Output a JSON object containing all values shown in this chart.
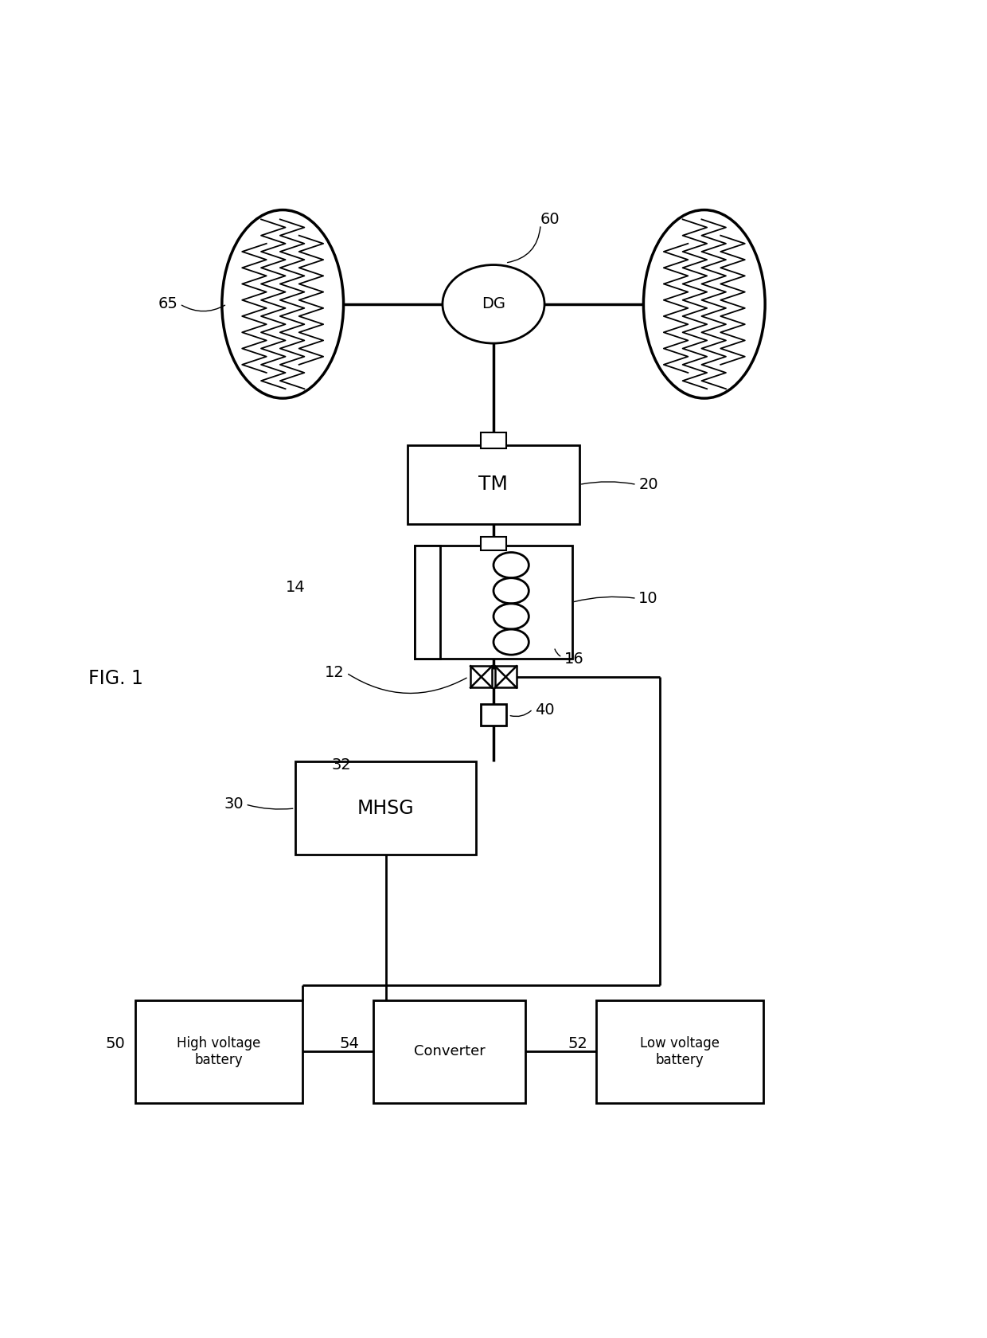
{
  "bg_color": "#ffffff",
  "lc": "#000000",
  "fig_label": "FIG. 1",
  "dg_label": "DG",
  "tm_label": "TM",
  "mhsg_label": "MHSG",
  "hv_label": "High voltage\nbattery",
  "conv_label": "Converter",
  "lv_label": "Low voltage\nbattery",
  "label_60": "60",
  "label_65": "65",
  "label_20": "20",
  "label_10": "10",
  "label_14": "14",
  "label_16": "16",
  "label_12": "12",
  "label_40": "40",
  "label_32": "32",
  "label_30": "30",
  "label_50": "50",
  "label_54": "54",
  "label_52": "52"
}
